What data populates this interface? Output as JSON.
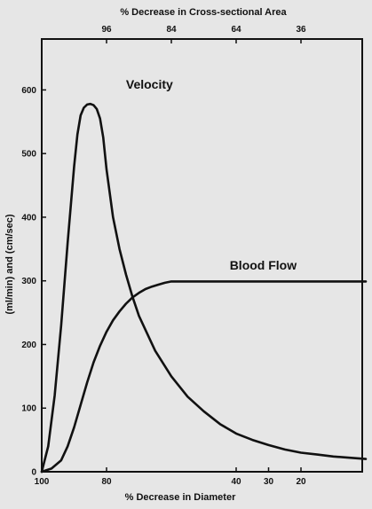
{
  "chart_data": {
    "type": "line",
    "title": "",
    "xlabel": "% Decrease in Diameter",
    "x2label": "% Decrease in Cross-sectional Area",
    "ylabel": "(ml/min) and (cm/sec)",
    "xlim": [
      100,
      0
    ],
    "ylim": [
      0,
      680
    ],
    "x_ticks": [
      100,
      80,
      40,
      30,
      20
    ],
    "x2_ticks": [
      {
        "label": "96",
        "x": 80
      },
      {
        "label": "84",
        "x": 60
      },
      {
        "label": "64",
        "x": 40
      },
      {
        "label": "36",
        "x": 20
      }
    ],
    "y_ticks": [
      0,
      100,
      200,
      300,
      400,
      500,
      600
    ],
    "grid": false,
    "legend": "none",
    "series": [
      {
        "name": "Velocity",
        "color": "#111111",
        "x": [
          100,
          98,
          96,
          94,
          92,
          90,
          89,
          88,
          87,
          86,
          85,
          84,
          83,
          82,
          81,
          80,
          78,
          76,
          74,
          72,
          70,
          65,
          60,
          55,
          50,
          45,
          40,
          35,
          30,
          25,
          20,
          15,
          10,
          5,
          0
        ],
        "y": [
          0,
          40,
          120,
          230,
          360,
          480,
          530,
          560,
          572,
          577,
          578,
          576,
          570,
          555,
          525,
          475,
          400,
          350,
          310,
          275,
          245,
          190,
          150,
          118,
          95,
          75,
          60,
          50,
          42,
          35,
          30,
          27,
          24,
          22,
          20
        ]
      },
      {
        "name": "Blood Flow",
        "color": "#111111",
        "x": [
          100,
          97,
          94,
          92,
          90,
          88,
          86,
          84,
          82,
          80,
          78,
          76,
          74,
          72,
          70,
          68,
          66,
          64,
          62,
          60,
          55,
          50,
          40,
          30,
          20,
          10,
          0
        ],
        "y": [
          0,
          5,
          18,
          40,
          70,
          105,
          140,
          172,
          198,
          220,
          238,
          252,
          264,
          274,
          281,
          287,
          291,
          294,
          297,
          299,
          299,
          299,
          299,
          299,
          299,
          299,
          299
        ]
      }
    ],
    "annotations": [
      {
        "text": "Velocity",
        "x": 74,
        "y": 602
      },
      {
        "text": "Blood Flow",
        "x": 42,
        "y": 318
      }
    ]
  }
}
